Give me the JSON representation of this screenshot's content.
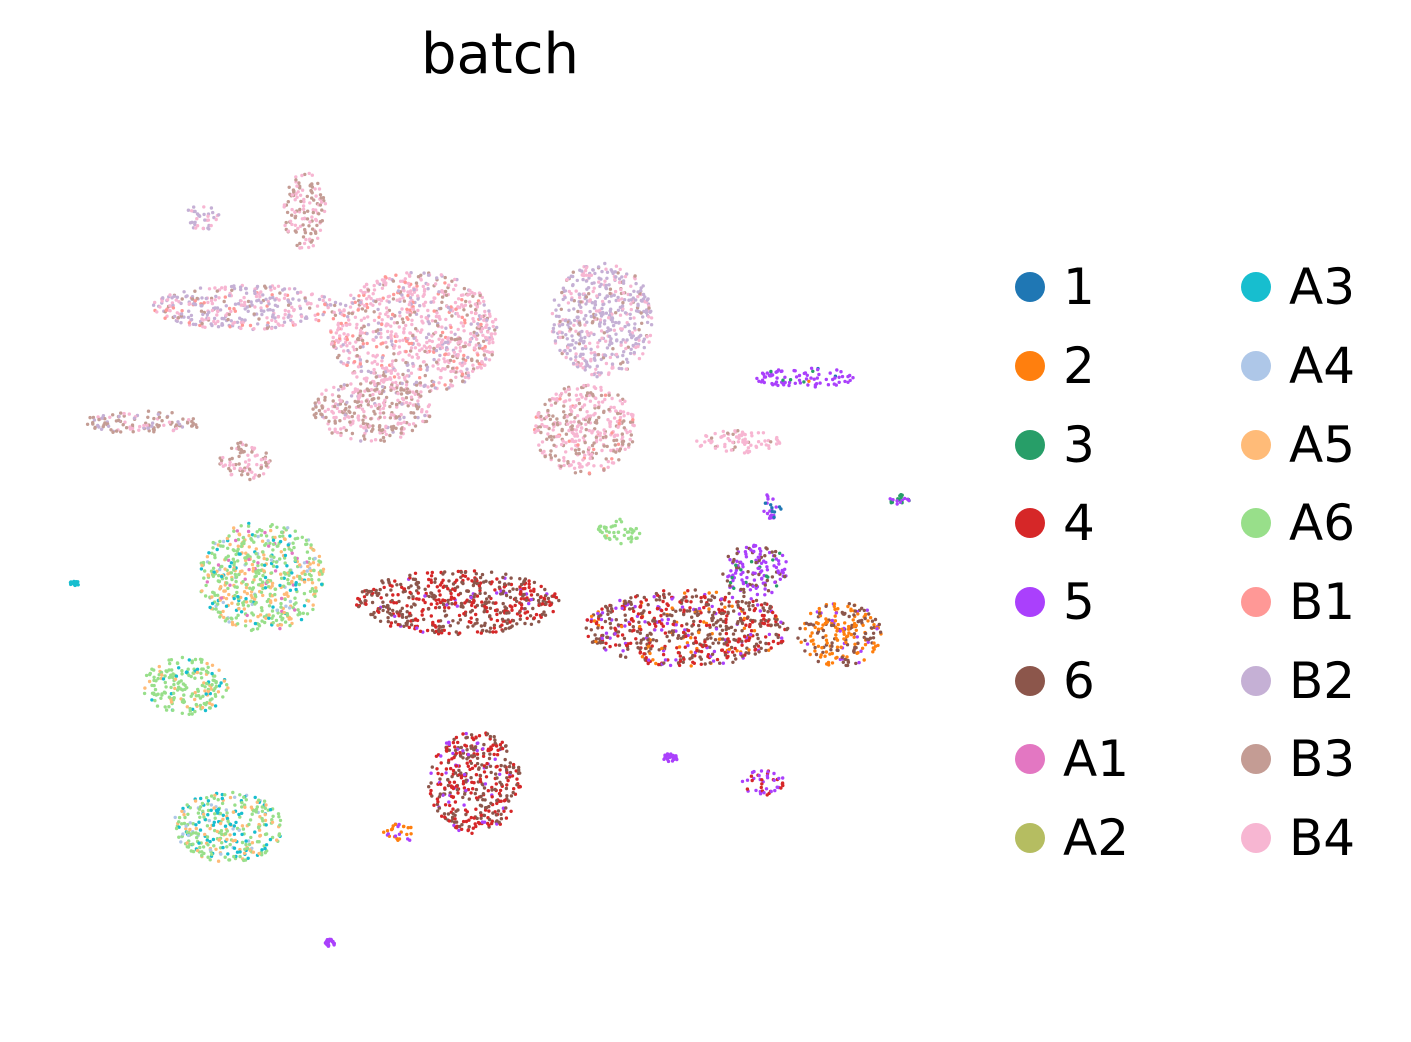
{
  "chart_data": {
    "type": "scatter",
    "title": "batch",
    "xlabel": "",
    "ylabel": "",
    "axes_visible": false,
    "grid": false,
    "legend_placement": "right",
    "legend_columns": 2,
    "series": [
      {
        "name": "1",
        "color": "#1f77b4"
      },
      {
        "name": "2",
        "color": "#ff7f0e"
      },
      {
        "name": "3",
        "color": "#279e68"
      },
      {
        "name": "4",
        "color": "#d62728"
      },
      {
        "name": "5",
        "color": "#aa40fc"
      },
      {
        "name": "6",
        "color": "#8c564b"
      },
      {
        "name": "A1",
        "color": "#e377c2"
      },
      {
        "name": "A2",
        "color": "#b5bd61"
      },
      {
        "name": "A3",
        "color": "#17becf"
      },
      {
        "name": "A4",
        "color": "#aec7e8"
      },
      {
        "name": "A5",
        "color": "#ffbb78"
      },
      {
        "name": "A6",
        "color": "#98df8a"
      },
      {
        "name": "B1",
        "color": "#ff9896"
      },
      {
        "name": "B2",
        "color": "#c5b0d5"
      },
      {
        "name": "B3",
        "color": "#c49c94"
      },
      {
        "name": "B4",
        "color": "#f7b6d2"
      }
    ],
    "clusters": [
      {
        "x": 0.2,
        "y": 0.74,
        "rx": 0.11,
        "ry": 0.035,
        "mix": {
          "B2": 0.45,
          "B4": 0.35,
          "B1": 0.1,
          "B3": 0.1
        }
      },
      {
        "x": 0.4,
        "y": 0.7,
        "rx": 0.1,
        "ry": 0.095,
        "mix": {
          "B4": 0.55,
          "B3": 0.2,
          "B2": 0.15,
          "B1": 0.1
        }
      },
      {
        "x": 0.62,
        "y": 0.72,
        "rx": 0.06,
        "ry": 0.09,
        "mix": {
          "B2": 0.6,
          "B4": 0.3,
          "B3": 0.1
        }
      },
      {
        "x": 0.6,
        "y": 0.55,
        "rx": 0.06,
        "ry": 0.07,
        "mix": {
          "B4": 0.6,
          "B3": 0.35,
          "B1": 0.05
        }
      },
      {
        "x": 0.35,
        "y": 0.58,
        "rx": 0.07,
        "ry": 0.05,
        "mix": {
          "B3": 0.45,
          "B4": 0.45,
          "B2": 0.1
        }
      },
      {
        "x": 0.08,
        "y": 0.56,
        "rx": 0.07,
        "ry": 0.018,
        "mix": {
          "B3": 0.6,
          "B2": 0.2,
          "B4": 0.2
        }
      },
      {
        "x": 0.2,
        "y": 0.5,
        "rx": 0.03,
        "ry": 0.03,
        "mix": {
          "B3": 0.6,
          "B4": 0.4
        }
      },
      {
        "x": 0.27,
        "y": 0.89,
        "rx": 0.025,
        "ry": 0.06,
        "mix": {
          "B3": 0.5,
          "B4": 0.5
        }
      },
      {
        "x": 0.15,
        "y": 0.88,
        "rx": 0.02,
        "ry": 0.02,
        "mix": {
          "B2": 0.7,
          "B4": 0.3
        }
      },
      {
        "x": 0.78,
        "y": 0.53,
        "rx": 0.05,
        "ry": 0.018,
        "mix": {
          "B4": 0.85,
          "B3": 0.15
        }
      },
      {
        "x": 0.22,
        "y": 0.32,
        "rx": 0.075,
        "ry": 0.085,
        "mix": {
          "A6": 0.5,
          "A5": 0.3,
          "A3": 0.1,
          "A4": 0.05,
          "A1": 0.05
        }
      },
      {
        "x": 0.13,
        "y": 0.15,
        "rx": 0.05,
        "ry": 0.045,
        "mix": {
          "A6": 0.75,
          "A5": 0.15,
          "A3": 0.1
        }
      },
      {
        "x": 0.18,
        "y": -0.07,
        "rx": 0.065,
        "ry": 0.055,
        "mix": {
          "A6": 0.45,
          "A3": 0.25,
          "A5": 0.2,
          "A4": 0.1
        }
      },
      {
        "x": 0.64,
        "y": 0.39,
        "rx": 0.025,
        "ry": 0.02,
        "mix": {
          "A6": 0.9,
          "A5": 0.1
        }
      },
      {
        "x": 0.45,
        "y": 0.28,
        "rx": 0.12,
        "ry": 0.05,
        "mix": {
          "6": 0.5,
          "4": 0.45,
          "5": 0.05
        }
      },
      {
        "x": 0.72,
        "y": 0.24,
        "rx": 0.12,
        "ry": 0.06,
        "mix": {
          "6": 0.5,
          "4": 0.3,
          "5": 0.1,
          "2": 0.1
        }
      },
      {
        "x": 0.8,
        "y": 0.33,
        "rx": 0.04,
        "ry": 0.04,
        "mix": {
          "5": 0.6,
          "6": 0.3,
          "3": 0.1
        }
      },
      {
        "x": 0.9,
        "y": 0.23,
        "rx": 0.05,
        "ry": 0.05,
        "mix": {
          "2": 0.55,
          "6": 0.35,
          "5": 0.1
        }
      },
      {
        "x": 0.47,
        "y": 0.0,
        "rx": 0.055,
        "ry": 0.08,
        "mix": {
          "6": 0.5,
          "4": 0.4,
          "5": 0.1
        }
      },
      {
        "x": 0.86,
        "y": 0.63,
        "rx": 0.06,
        "ry": 0.015,
        "mix": {
          "5": 0.85,
          "1": 0.05,
          "3": 0.05,
          "2": 0.05
        }
      },
      {
        "x": 0.82,
        "y": 0.43,
        "rx": 0.012,
        "ry": 0.02,
        "mix": {
          "5": 0.7,
          "1": 0.3
        }
      },
      {
        "x": 0.81,
        "y": 0.0,
        "rx": 0.025,
        "ry": 0.02,
        "mix": {
          "5": 0.6,
          "4": 0.4
        }
      },
      {
        "x": 0.7,
        "y": 0.04,
        "rx": 0.01,
        "ry": 0.008,
        "mix": {
          "5": 1.0
        }
      },
      {
        "x": 0.97,
        "y": 0.44,
        "rx": 0.012,
        "ry": 0.008,
        "mix": {
          "3": 0.5,
          "5": 0.5
        }
      },
      {
        "x": 0.0,
        "y": 0.31,
        "rx": 0.006,
        "ry": 0.004,
        "mix": {
          "A3": 1.0
        }
      },
      {
        "x": 0.3,
        "y": -0.25,
        "rx": 0.006,
        "ry": 0.006,
        "mix": {
          "5": 1.0
        }
      },
      {
        "x": 0.38,
        "y": -0.08,
        "rx": 0.02,
        "ry": 0.015,
        "mix": {
          "2": 0.7,
          "5": 0.3
        }
      }
    ]
  },
  "legend": {
    "items": [
      {
        "label": "1",
        "color": "#1f77b4"
      },
      {
        "label": "2",
        "color": "#ff7f0e"
      },
      {
        "label": "3",
        "color": "#279e68"
      },
      {
        "label": "4",
        "color": "#d62728"
      },
      {
        "label": "5",
        "color": "#aa40fc"
      },
      {
        "label": "6",
        "color": "#8c564b"
      },
      {
        "label": "A1",
        "color": "#e377c2"
      },
      {
        "label": "A2",
        "color": "#b5bd61"
      },
      {
        "label": "A3",
        "color": "#17becf"
      },
      {
        "label": "A4",
        "color": "#aec7e8"
      },
      {
        "label": "A5",
        "color": "#ffbb78"
      },
      {
        "label": "A6",
        "color": "#98df8a"
      },
      {
        "label": "B1",
        "color": "#ff9896"
      },
      {
        "label": "B2",
        "color": "#c5b0d5"
      },
      {
        "label": "B3",
        "color": "#c49c94"
      },
      {
        "label": "B4",
        "color": "#f7b6d2"
      }
    ]
  }
}
